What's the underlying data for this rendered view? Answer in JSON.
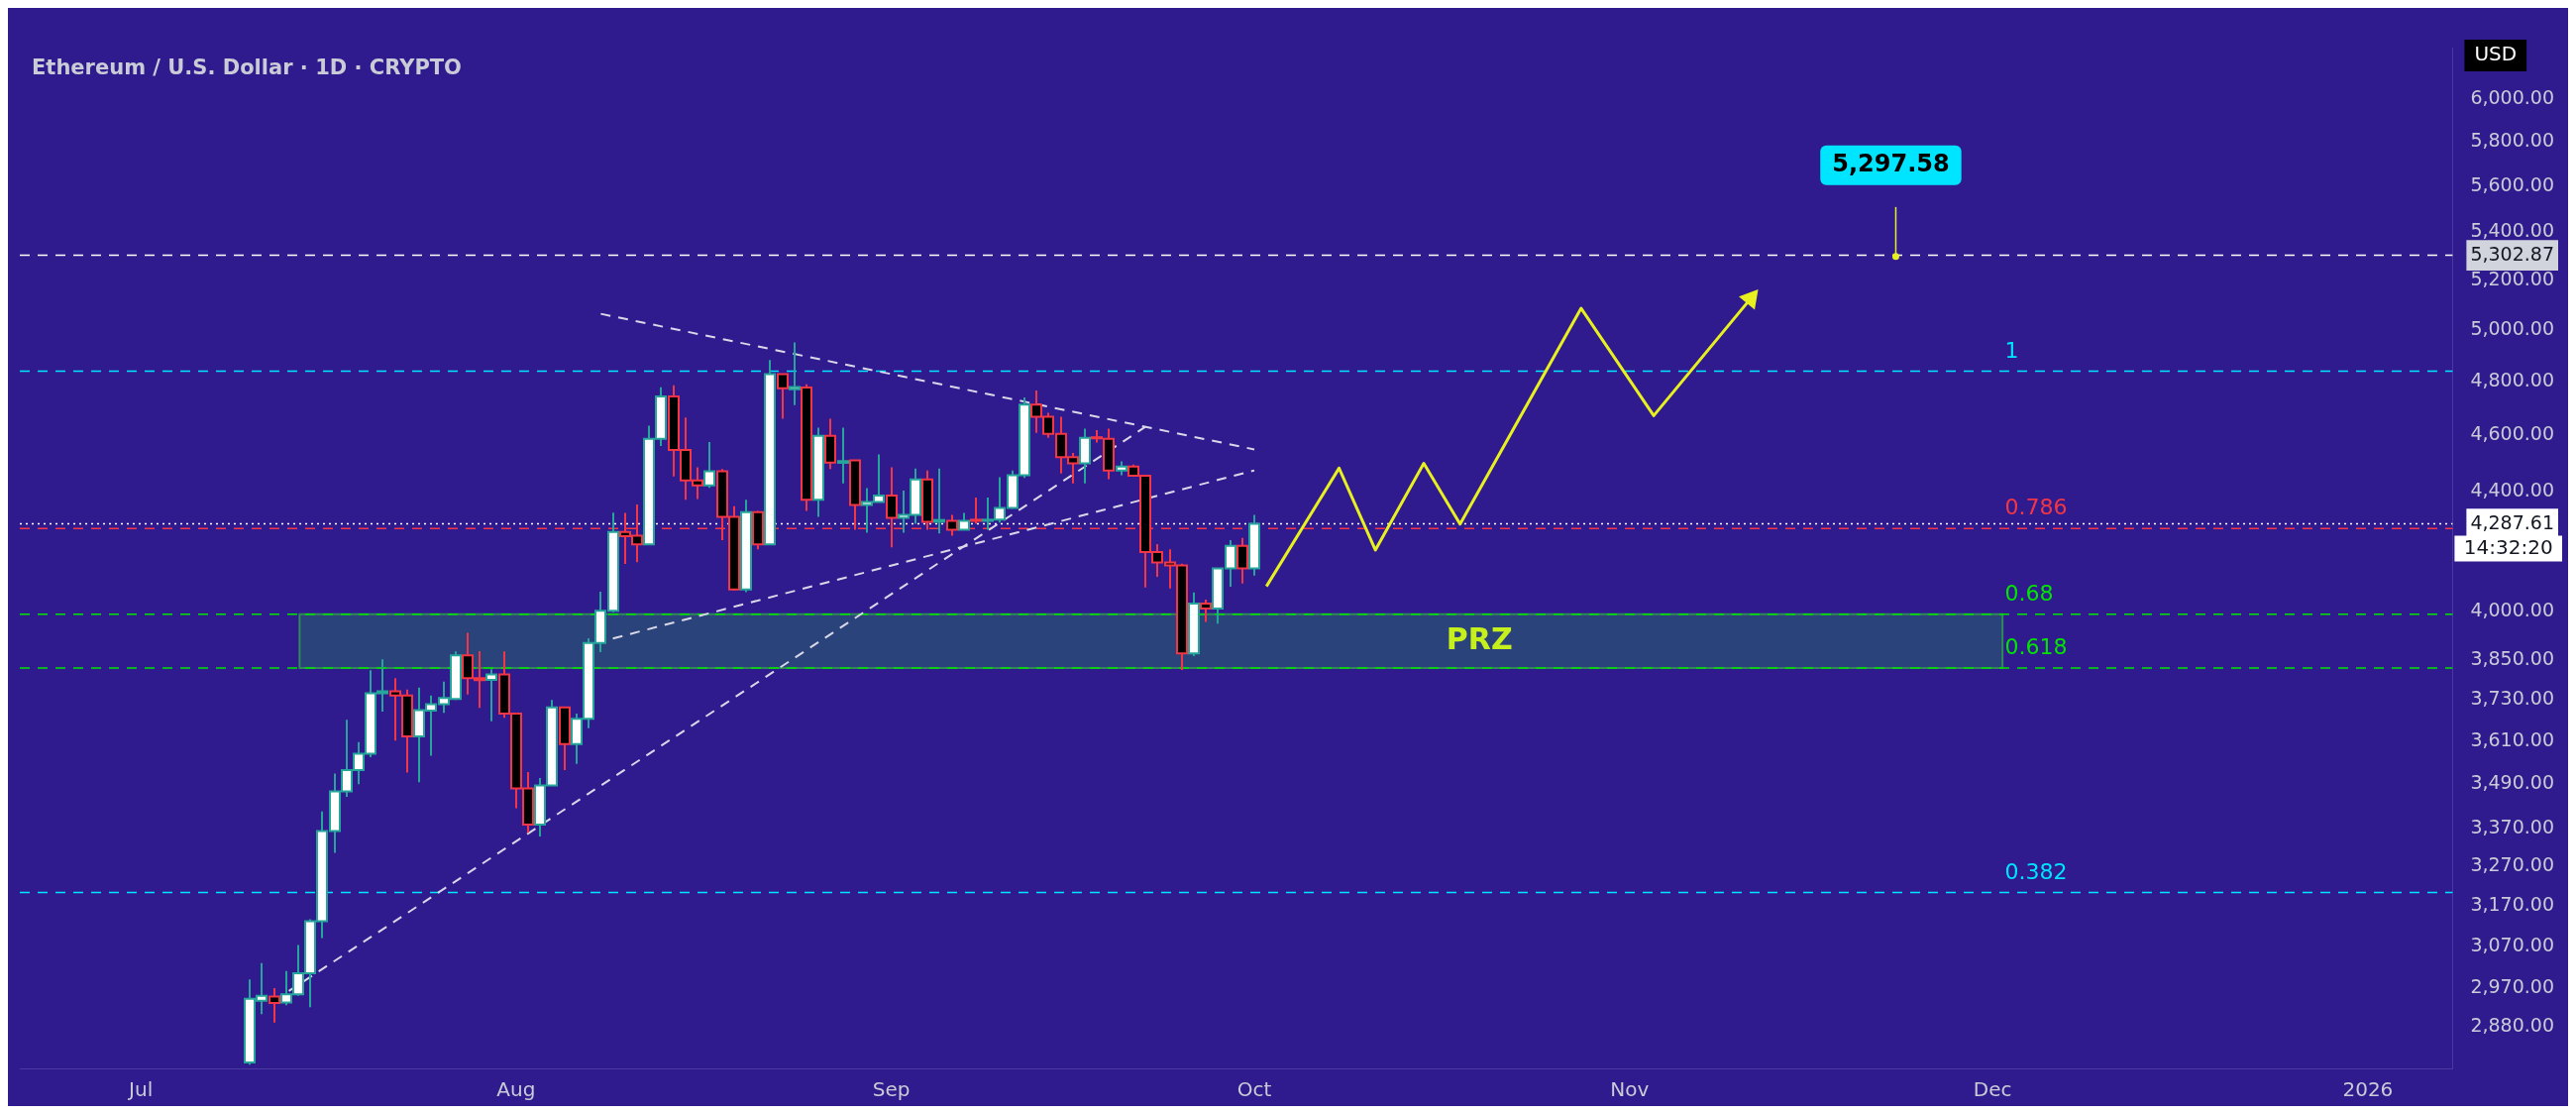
{
  "chart_data": {
    "type": "candlestick",
    "title": "Ethereum / U.S. Dollar · 1D · CRYPTO",
    "ylabel": "USD",
    "log": true,
    "x": [
      "2025-07-10",
      "2025-07-11",
      "2025-07-12",
      "2025-07-13",
      "2025-07-14",
      "2025-07-15",
      "2025-07-16",
      "2025-07-17",
      "2025-07-18",
      "2025-07-19",
      "2025-07-20",
      "2025-07-21",
      "2025-07-22",
      "2025-07-23",
      "2025-07-24",
      "2025-07-25",
      "2025-07-26",
      "2025-07-27",
      "2025-07-28",
      "2025-07-29",
      "2025-07-30",
      "2025-07-31",
      "2025-08-01",
      "2025-08-02",
      "2025-08-03",
      "2025-08-04",
      "2025-08-05",
      "2025-08-06",
      "2025-08-07",
      "2025-08-08",
      "2025-08-09",
      "2025-08-10",
      "2025-08-11",
      "2025-08-12",
      "2025-08-13",
      "2025-08-14",
      "2025-08-15",
      "2025-08-16",
      "2025-08-17",
      "2025-08-18",
      "2025-08-19",
      "2025-08-20",
      "2025-08-21",
      "2025-08-22",
      "2025-08-23",
      "2025-08-24",
      "2025-08-25",
      "2025-08-26",
      "2025-08-27",
      "2025-08-28",
      "2025-08-29",
      "2025-08-30",
      "2025-08-31",
      "2025-09-01",
      "2025-09-02",
      "2025-09-03",
      "2025-09-04",
      "2025-09-05",
      "2025-09-06",
      "2025-09-07",
      "2025-09-08",
      "2025-09-09",
      "2025-09-10",
      "2025-09-11",
      "2025-09-12",
      "2025-09-13",
      "2025-09-14",
      "2025-09-15",
      "2025-09-16",
      "2025-09-17",
      "2025-09-18",
      "2025-09-19",
      "2025-09-20",
      "2025-09-21",
      "2025-09-22",
      "2025-09-23",
      "2025-09-24",
      "2025-09-25",
      "2025-09-26",
      "2025-09-27",
      "2025-09-28",
      "2025-09-29",
      "2025-09-30",
      "2025-10-01"
    ],
    "ohlc": [
      [
        2800,
        2990,
        2795,
        2945
      ],
      [
        2940,
        3029,
        2909,
        2952
      ],
      [
        2950,
        2970,
        2890,
        2935
      ],
      [
        2936,
        3010,
        2930,
        2955
      ],
      [
        2955,
        3073,
        2952,
        3005
      ],
      [
        3005,
        3136,
        2925,
        3131
      ],
      [
        3131,
        3415,
        3090,
        3363
      ],
      [
        3363,
        3519,
        3305,
        3470
      ],
      [
        3470,
        3672,
        3455,
        3529
      ],
      [
        3529,
        3608,
        3490,
        3575
      ],
      [
        3575,
        3819,
        3565,
        3750
      ],
      [
        3750,
        3852,
        3696,
        3756
      ],
      [
        3756,
        3795,
        3612,
        3743
      ],
      [
        3743,
        3761,
        3522,
        3624
      ],
      [
        3624,
        3767,
        3495,
        3700
      ],
      [
        3699,
        3743,
        3569,
        3718
      ],
      [
        3718,
        3785,
        3692,
        3736
      ],
      [
        3733,
        3876,
        3730,
        3864
      ],
      [
        3864,
        3934,
        3746,
        3795
      ],
      [
        3795,
        3877,
        3707,
        3789
      ],
      [
        3790,
        3822,
        3668,
        3806
      ],
      [
        3806,
        3876,
        3678,
        3690
      ],
      [
        3690,
        3690,
        3424,
        3478
      ],
      [
        3478,
        3523,
        3358,
        3380
      ],
      [
        3380,
        3507,
        3348,
        3486
      ],
      [
        3486,
        3730,
        3486,
        3708
      ],
      [
        3708,
        3708,
        3529,
        3602
      ],
      [
        3602,
        3690,
        3546,
        3675
      ],
      [
        3675,
        3917,
        3648,
        3902
      ],
      [
        3902,
        4064,
        3874,
        4003
      ],
      [
        4003,
        4326,
        3998,
        4260
      ],
      [
        4260,
        4325,
        4154,
        4246
      ],
      [
        4248,
        4354,
        4160,
        4219
      ],
      [
        4219,
        4634,
        4219,
        4586
      ],
      [
        4586,
        4777,
        4560,
        4743
      ],
      [
        4743,
        4785,
        4452,
        4546
      ],
      [
        4546,
        4664,
        4370,
        4438
      ],
      [
        4438,
        4484,
        4373,
        4420
      ],
      [
        4420,
        4575,
        4412,
        4470
      ],
      [
        4470,
        4478,
        4233,
        4312
      ],
      [
        4312,
        4348,
        4068,
        4071
      ],
      [
        4071,
        4370,
        4062,
        4328
      ],
      [
        4328,
        4332,
        4202,
        4219
      ],
      [
        4219,
        4881,
        4219,
        4827
      ],
      [
        4827,
        4827,
        4660,
        4773
      ],
      [
        4770,
        4950,
        4710,
        4778
      ],
      [
        4776,
        4788,
        4332,
        4370
      ],
      [
        4370,
        4627,
        4312,
        4597
      ],
      [
        4597,
        4660,
        4478,
        4501
      ],
      [
        4500,
        4627,
        4427,
        4506
      ],
      [
        4509,
        4509,
        4268,
        4352
      ],
      [
        4352,
        4411,
        4258,
        4363
      ],
      [
        4363,
        4530,
        4363,
        4385
      ],
      [
        4385,
        4484,
        4209,
        4308
      ],
      [
        4308,
        4402,
        4258,
        4318
      ],
      [
        4318,
        4480,
        4288,
        4441
      ],
      [
        4441,
        4473,
        4268,
        4295
      ],
      [
        4295,
        4480,
        4255,
        4301
      ],
      [
        4298,
        4318,
        4248,
        4268
      ],
      [
        4268,
        4325,
        4268,
        4298
      ],
      [
        4302,
        4378,
        4289,
        4298
      ],
      [
        4298,
        4378,
        4268,
        4302
      ],
      [
        4302,
        4449,
        4292,
        4342
      ],
      [
        4342,
        4473,
        4340,
        4456
      ],
      [
        4456,
        4739,
        4446,
        4712
      ],
      [
        4712,
        4765,
        4608,
        4667
      ],
      [
        4667,
        4682,
        4590,
        4604
      ],
      [
        4604,
        4667,
        4462,
        4520
      ],
      [
        4520,
        4535,
        4427,
        4498
      ],
      [
        4498,
        4623,
        4427,
        4590
      ],
      [
        4592,
        4618,
        4573,
        4588
      ],
      [
        4586,
        4623,
        4442,
        4473
      ],
      [
        4473,
        4505,
        4456,
        4487
      ],
      [
        4487,
        4494,
        4454,
        4454
      ],
      [
        4454,
        4456,
        4077,
        4193
      ],
      [
        4193,
        4220,
        4112,
        4159
      ],
      [
        4159,
        4202,
        4074,
        4149
      ],
      [
        4149,
        4155,
        3820,
        3870
      ],
      [
        3870,
        4061,
        3862,
        4026
      ],
      [
        4026,
        4038,
        3968,
        4010
      ],
      [
        4010,
        4139,
        3962,
        4139
      ],
      [
        4139,
        4233,
        4080,
        4214
      ],
      [
        4214,
        4240,
        4090,
        4139
      ],
      [
        4139,
        4318,
        4116,
        4287.61
      ]
    ],
    "series": [
      {
        "type": "line",
        "color": "#d8d8e8",
        "line_style": "dashed",
        "x": [
          "2025-08-08",
          "2025-10-01"
        ],
        "values": [
          5063,
          4548
        ]
      },
      {
        "type": "line",
        "color": "#d8d8e8",
        "line_style": "dashed",
        "x": [
          "2025-08-09",
          "2025-10-01"
        ],
        "values": [
          3916,
          4473
        ]
      },
      {
        "type": "line",
        "color": "#d8d8e8",
        "line_style": "dashed",
        "x": [
          "2025-07-12",
          "2025-09-22"
        ],
        "values": [
          2940,
          4630
        ]
      },
      {
        "type": "line",
        "color": "#e8f020",
        "line_style": "solid",
        "x": [
          "2025-10-02",
          "2025-10-08",
          "2025-10-11",
          "2025-10-15",
          "2025-10-18",
          "2025-10-28",
          "2025-11-03",
          "2025-11-11"
        ],
        "values": [
          4081,
          4481,
          4200,
          4498,
          4287,
          5085,
          4671,
          5124
        ]
      }
    ],
    "xlim": [
      "2025-06-21",
      "2026-01-08"
    ],
    "xticks": [
      {
        "value": "2025-07-01",
        "label": "Jul"
      },
      {
        "value": "2025-08-01",
        "label": "Aug"
      },
      {
        "value": "2025-09-01",
        "label": "Sep"
      },
      {
        "value": "2025-10-01",
        "label": "Oct"
      },
      {
        "value": "2025-11-01",
        "label": "Nov"
      },
      {
        "value": "2025-12-01",
        "label": "Dec"
      },
      {
        "value": "2026-01-01",
        "label": "2026"
      }
    ],
    "ylim": [
      2787,
      6250
    ],
    "yticks": [
      {
        "value": 2880,
        "label": "2,880.00"
      },
      {
        "value": 2970,
        "label": "2,970.00"
      },
      {
        "value": 3070,
        "label": "3,070.00"
      },
      {
        "value": 3170,
        "label": "3,170.00"
      },
      {
        "value": 3270,
        "label": "3,270.00"
      },
      {
        "value": 3370,
        "label": "3,370.00"
      },
      {
        "value": 3490,
        "label": "3,490.00"
      },
      {
        "value": 3610,
        "label": "3,610.00"
      },
      {
        "value": 3730,
        "label": "3,730.00"
      },
      {
        "value": 3850,
        "label": "3,850.00"
      },
      {
        "value": 4000,
        "label": "4,000.00"
      },
      {
        "value": 4287.61,
        "label": "4,287.61"
      },
      {
        "value": 4400,
        "label": "4,400.00"
      },
      {
        "value": 4600,
        "label": "4,600.00"
      },
      {
        "value": 4800,
        "label": "4,800.00"
      },
      {
        "value": 5000,
        "label": "5,000.00"
      },
      {
        "value": 5200,
        "label": "5,200.00"
      },
      {
        "value": 5302.87,
        "label": "5,302.87"
      },
      {
        "value": 5400,
        "label": "5,400.00"
      },
      {
        "value": 5600,
        "label": "5,600.00"
      },
      {
        "value": 5800,
        "label": "5,800.00"
      },
      {
        "value": 6000,
        "label": "6,000.00"
      }
    ],
    "ref_lines": [
      {
        "axis": "y",
        "value": 5302.87,
        "color": "#ffffff",
        "line_style": "dashed"
      },
      {
        "axis": "y",
        "value": 4287.61,
        "color": "#ffffff",
        "line_style": "dotted"
      },
      {
        "axis": "y",
        "value": 4838,
        "color": "#00e5ff",
        "line_style": "dashed"
      },
      {
        "axis": "y",
        "value": 4272,
        "color": "#f23645",
        "line_style": "dashed"
      },
      {
        "axis": "y",
        "value": 3992,
        "color": "#00e600",
        "line_style": "dashed"
      },
      {
        "axis": "y",
        "value": 3826,
        "color": "#00e600",
        "line_style": "dashed"
      },
      {
        "axis": "y",
        "value": 3203,
        "color": "#00e5ff",
        "line_style": "dashed"
      }
    ],
    "bands": [
      {
        "axis": "y",
        "from": 3826,
        "to": 3992,
        "label": "PRZ",
        "color": "#2a4a78"
      }
    ],
    "annotations": [
      {
        "text": "5,297.58",
        "x": "2025-11-23",
        "y": 5297.58
      },
      "14:32:20",
      {
        "text": "1",
        "x": "2025-12-02",
        "y": 4838
      },
      {
        "text": "0.786",
        "x": "2025-12-02",
        "y": 4272
      },
      {
        "text": "0.68",
        "x": "2025-12-02",
        "y": 3992
      },
      {
        "text": "0.618",
        "x": "2025-12-02",
        "y": 3826
      },
      {
        "text": "0.382",
        "x": "2025-12-02",
        "y": 3203
      }
    ]
  }
}
